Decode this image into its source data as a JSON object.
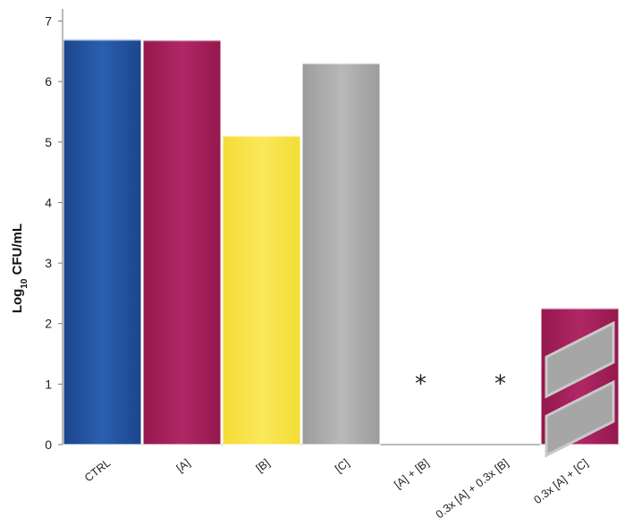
{
  "chart_data": {
    "type": "bar",
    "categories": [
      "CTRL",
      "[A]",
      "[B]",
      "[C]",
      "[A] + [B]",
      "0.3x [A] + 0.3x [B]",
      "0.3x [A] + [C]"
    ],
    "values": [
      6.7,
      6.69,
      5.11,
      6.31,
      0,
      0,
      2.26
    ],
    "bar_colors": [
      "#2352a0",
      "#a81f5a",
      "#f9e54a",
      "#ababab",
      "#ffffff",
      "#ffffff",
      "#a81f5a"
    ],
    "hatched_bar_fill": "#a6a6a6",
    "ylabel_main": "Log",
    "ylabel_sub": "10",
    "ylabel_rest": " CFU/mL",
    "yticks": [
      0,
      1,
      2,
      3,
      4,
      5,
      6,
      7
    ],
    "ylim": [
      0,
      7.2
    ],
    "markers": [
      {
        "category": "[A] + [B]",
        "symbol": "*",
        "value": 1
      },
      {
        "category": "0.3x [A] + 0.3x [B]",
        "symbol": "*",
        "value": 1
      }
    ],
    "grid": false,
    "legend": "none"
  }
}
